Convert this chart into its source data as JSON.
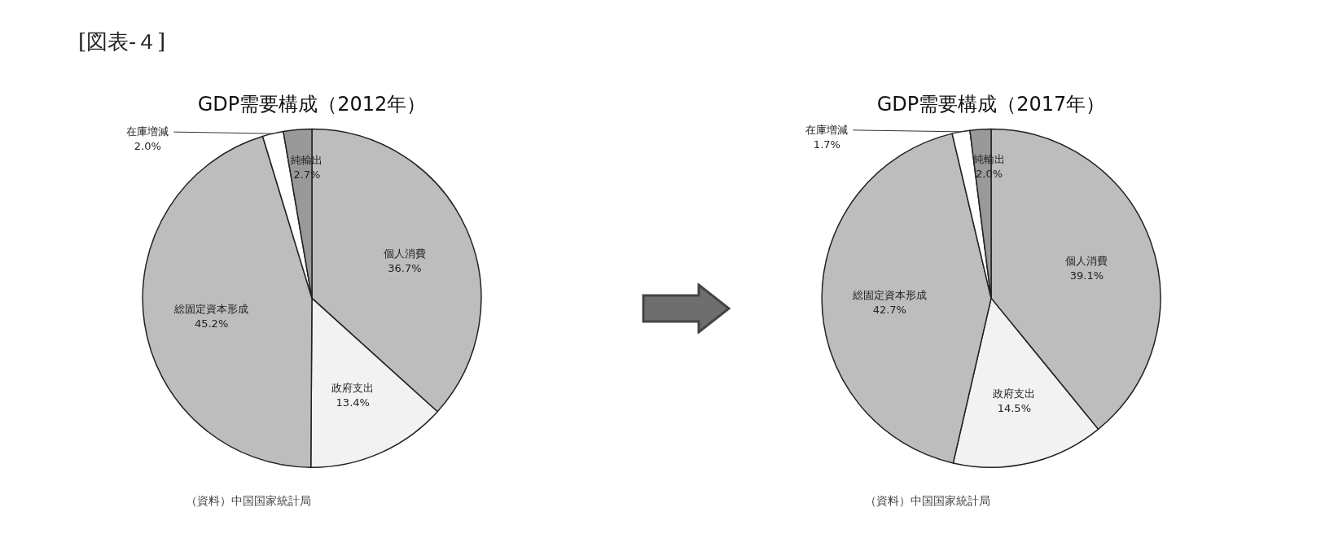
{
  "chart_data": [
    {
      "type": "pie",
      "title": "GDP需要構成（2012年）",
      "categories": [
        "個人消費",
        "政府支出",
        "総固定資本形成",
        "在庫増減",
        "純輸出"
      ],
      "values": [
        36.7,
        13.4,
        45.2,
        2.0,
        2.7
      ],
      "value_labels": [
        "36.7%",
        "13.4%",
        "45.2%",
        "2.0%",
        "2.7%"
      ],
      "colors": [
        "#bdbdbd",
        "#f2f2f2",
        "#bdbdbd",
        "#ffffff",
        "#999999"
      ],
      "annotations": [
        "[図表-４]",
        "（資料）中国国家統計局"
      ]
    },
    {
      "type": "pie",
      "title": "GDP需要構成（2017年）",
      "categories": [
        "個人消費",
        "政府支出",
        "総固定資本形成",
        "在庫増減",
        "純輸出"
      ],
      "values": [
        39.1,
        14.5,
        42.7,
        1.7,
        2.0
      ],
      "value_labels": [
        "39.1%",
        "14.5%",
        "42.7%",
        "1.7%",
        "2.0%"
      ],
      "colors": [
        "#bdbdbd",
        "#f2f2f2",
        "#bdbdbd",
        "#ffffff",
        "#999999"
      ],
      "annotations": [
        "（資料）中国国家統計局"
      ]
    }
  ]
}
